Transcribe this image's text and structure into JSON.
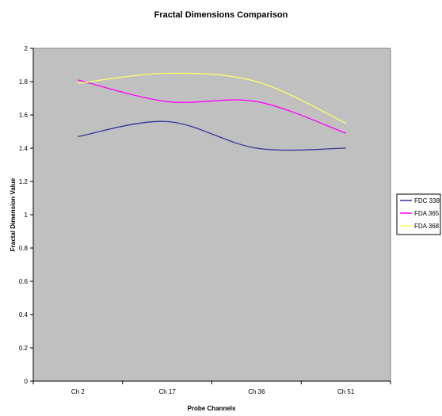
{
  "chart_data": {
    "type": "line",
    "title": "Fractal Dimensions Comparison",
    "xlabel": "Probe Channels",
    "ylabel": "Fractal Dimension Value",
    "categories": [
      "Ch 2",
      "Ch 17",
      "Ch 36",
      "Ch 51"
    ],
    "ylim": [
      0,
      2
    ],
    "yticks": [
      "0",
      "0.2",
      "0.4",
      "0.6",
      "0.8",
      "1",
      "1.2",
      "1.4",
      "1.6",
      "1.8",
      "2"
    ],
    "grid": false,
    "legend_position": "right",
    "plot_background": "#c0c0c0",
    "series": [
      {
        "name": "FDC 338",
        "color": "#333399",
        "values": [
          1.47,
          1.56,
          1.4,
          1.4
        ]
      },
      {
        "name": "FDA 365",
        "color": "#ff00ff",
        "values": [
          1.81,
          1.68,
          1.68,
          1.49
        ]
      },
      {
        "name": "FDA 368",
        "color": "#ffff66",
        "values": [
          1.79,
          1.85,
          1.8,
          1.55
        ]
      }
    ]
  }
}
